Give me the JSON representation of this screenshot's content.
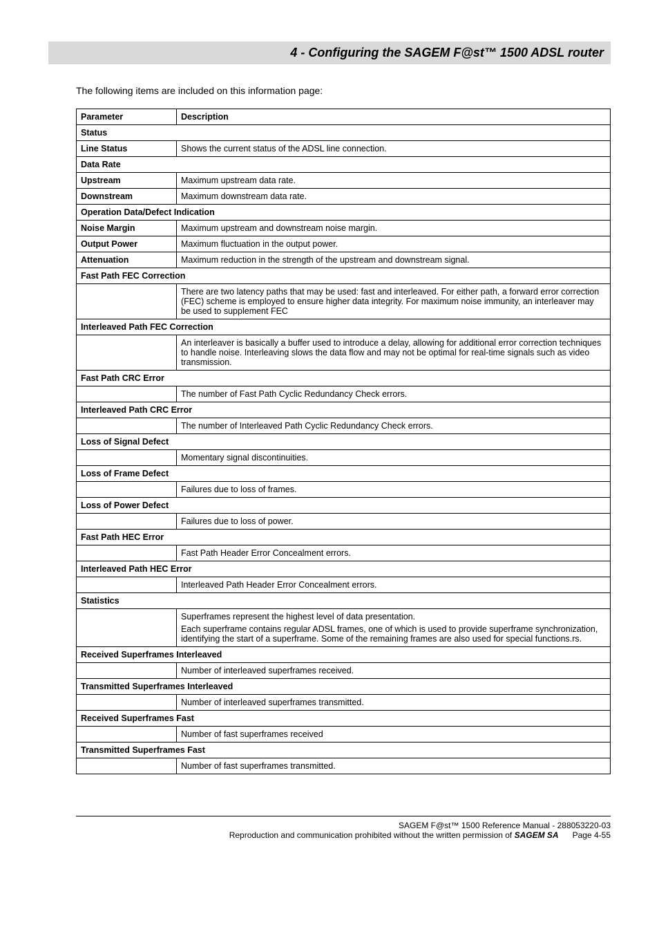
{
  "header": {
    "title": "4 - Configuring the SAGEM F@st™ 1500 ADSL router"
  },
  "intro": "The following items are included on this information page:",
  "table": {
    "columns": [
      "Parameter",
      "Description"
    ],
    "rows": [
      {
        "type": "section",
        "label": "Status"
      },
      {
        "type": "param",
        "name": "Line Status",
        "desc": "Shows the current status of the ADSL line connection."
      },
      {
        "type": "section",
        "label": "Data Rate"
      },
      {
        "type": "param",
        "name": "Upstream",
        "desc": "Maximum upstream data rate."
      },
      {
        "type": "param",
        "name": "Downstream",
        "desc": "Maximum downstream data rate."
      },
      {
        "type": "section",
        "label": "Operation Data/Defect Indication"
      },
      {
        "type": "param",
        "name": "Noise Margin",
        "desc": "Maximum upstream and downstream noise margin."
      },
      {
        "type": "param",
        "name": "Output Power",
        "desc": "Maximum fluctuation in the output power."
      },
      {
        "type": "param",
        "name": "Attenuation",
        "desc": "Maximum reduction in the strength of the upstream and downstream signal."
      },
      {
        "type": "section",
        "label": "Fast Path FEC Correction"
      },
      {
        "type": "desc-only",
        "desc": "There are two latency paths that may be used: fast and interleaved. For either path, a forward error correction (FEC) scheme is employed to ensure higher data integrity. For maximum noise immunity, an interleaver may be used to supplement FEC"
      },
      {
        "type": "section",
        "label": "Interleaved Path FEC Correction"
      },
      {
        "type": "desc-only",
        "desc": "An interleaver is basically a buffer used to introduce a delay, allowing for additional error correction techniques to handle noise. Interleaving slows the data flow and may not be optimal for real-time signals such as video transmission."
      },
      {
        "type": "section",
        "label": "Fast Path CRC Error"
      },
      {
        "type": "desc-only",
        "desc": "The number of Fast Path Cyclic Redundancy Check errors."
      },
      {
        "type": "section",
        "label": "Interleaved Path CRC Error"
      },
      {
        "type": "desc-only",
        "desc": "The number of Interleaved Path Cyclic Redundancy Check errors."
      },
      {
        "type": "section",
        "label": "Loss of Signal Defect"
      },
      {
        "type": "desc-only",
        "desc": "Momentary signal discontinuities."
      },
      {
        "type": "section",
        "label": "Loss of Frame Defect"
      },
      {
        "type": "desc-only",
        "desc": "Failures due to loss of frames."
      },
      {
        "type": "section",
        "label": "Loss of Power Defect"
      },
      {
        "type": "desc-only",
        "desc": "Failures due to loss of power."
      },
      {
        "type": "section",
        "label": "Fast Path HEC Error"
      },
      {
        "type": "desc-only",
        "desc": "Fast Path Header Error Concealment errors."
      },
      {
        "type": "section",
        "label": "Interleaved Path HEC Error"
      },
      {
        "type": "desc-only",
        "desc": "Interleaved Path Header Error Concealment errors."
      },
      {
        "type": "section",
        "label": "Statistics"
      },
      {
        "type": "desc-only-multi",
        "desc1": "Superframes represent the highest level of data presentation.",
        "desc2": "Each superframe contains regular ADSL frames, one of which is used to provide superframe synchronization, identifying the start of a superframe. Some of the remaining frames are also used for special functions.rs."
      },
      {
        "type": "section",
        "label": "Received Superframes Interleaved"
      },
      {
        "type": "desc-only",
        "desc": "Number of interleaved superframes received."
      },
      {
        "type": "section",
        "label": "Transmitted Superframes Interleaved"
      },
      {
        "type": "desc-only",
        "desc": "Number of interleaved superframes transmitted."
      },
      {
        "type": "section",
        "label": "Received Superframes Fast"
      },
      {
        "type": "desc-only",
        "desc": "Number of fast superframes received"
      },
      {
        "type": "section",
        "label": "Transmitted Superframes Fast"
      },
      {
        "type": "desc-only",
        "desc": "Number of fast superframes transmitted."
      }
    ]
  },
  "footer": {
    "line1": "SAGEM F@st™ 1500 Reference Manual - 288053220-03",
    "line2_prefix": "Reproduction and communication prohibited without the written permission of ",
    "line2_brand": "SAGEM SA",
    "line2_suffix": "      Page 4-55"
  }
}
